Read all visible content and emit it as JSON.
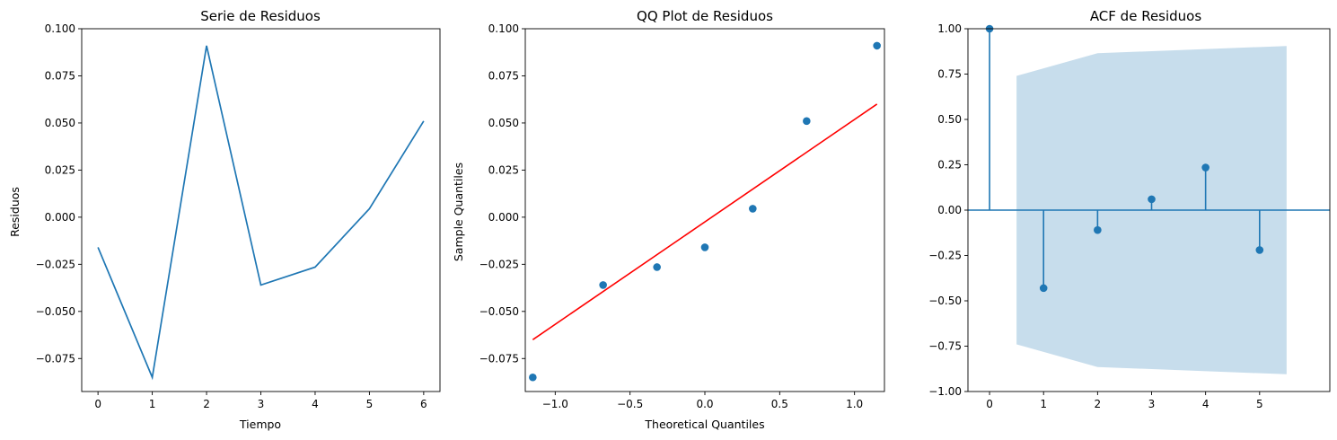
{
  "chart_data": [
    {
      "type": "line",
      "title": "Serie de Residuos",
      "xlabel": "Tiempo",
      "ylabel": "Residuos",
      "xlim": [
        -0.3,
        6.3
      ],
      "ylim": [
        -0.0925,
        0.1
      ],
      "x_ticks": [
        0,
        1,
        2,
        3,
        4,
        5,
        6
      ],
      "x_tick_labels": [
        "0",
        "1",
        "2",
        "3",
        "4",
        "5",
        "6"
      ],
      "y_ticks": [
        -0.075,
        -0.05,
        -0.025,
        0.0,
        0.025,
        0.05,
        0.075,
        0.1
      ],
      "y_tick_labels": [
        "−0.075",
        "−0.050",
        "−0.025",
        "0.000",
        "0.025",
        "0.050",
        "0.075",
        "0.100"
      ],
      "grid": false,
      "series": [
        {
          "x": [
            0,
            1,
            2,
            3,
            4,
            5,
            6
          ],
          "y": [
            -0.016,
            -0.085,
            0.091,
            -0.036,
            -0.0265,
            0.0045,
            0.051
          ],
          "color": "#1f77b4"
        }
      ]
    },
    {
      "type": "scatter",
      "title": "QQ Plot de Residuos",
      "xlabel": "Theoretical Quantiles",
      "ylabel": "Sample Quantiles",
      "xlim": [
        -1.2,
        1.2
      ],
      "ylim": [
        -0.0925,
        0.1
      ],
      "x_ticks": [
        -1.0,
        -0.5,
        0.0,
        0.5,
        1.0
      ],
      "x_tick_labels": [
        "−1.0",
        "−0.5",
        "0.0",
        "0.5",
        "1.0"
      ],
      "y_ticks": [
        -0.075,
        -0.05,
        -0.025,
        0.0,
        0.025,
        0.05,
        0.075,
        0.1
      ],
      "y_tick_labels": [
        "−0.075",
        "−0.050",
        "−0.025",
        "0.000",
        "0.025",
        "0.050",
        "0.075",
        "0.100"
      ],
      "grid": false,
      "points": {
        "x": [
          -1.15,
          -0.68,
          -0.32,
          0.0,
          0.32,
          0.68,
          1.15
        ],
        "y": [
          -0.085,
          -0.036,
          -0.0265,
          -0.016,
          0.0045,
          0.051,
          0.091
        ],
        "color": "#1f77b4"
      },
      "reference_line": {
        "x": [
          -1.15,
          1.15
        ],
        "y": [
          -0.065,
          0.06
        ],
        "color": "#ff0000"
      }
    },
    {
      "type": "stem",
      "title": "ACF de Residuos",
      "xlabel": "",
      "ylabel": "",
      "xlim": [
        -0.4,
        6.3
      ],
      "ylim": [
        -1.0,
        1.0
      ],
      "x_ticks": [
        0,
        1,
        2,
        3,
        4,
        5
      ],
      "x_tick_labels": [
        "0",
        "1",
        "2",
        "3",
        "4",
        "5"
      ],
      "y_ticks": [
        -1.0,
        -0.75,
        -0.5,
        -0.25,
        0.0,
        0.25,
        0.5,
        0.75,
        1.0
      ],
      "y_tick_labels": [
        "−1.00",
        "−0.75",
        "−0.50",
        "−0.25",
        "0.00",
        "0.25",
        "0.50",
        "0.75",
        "1.00"
      ],
      "grid": false,
      "lags": [
        0,
        1,
        2,
        3,
        4,
        5
      ],
      "acf": [
        1.0,
        -0.43,
        -0.11,
        0.06,
        0.235,
        -0.22
      ],
      "color": "#1f77b4",
      "confidence_band": {
        "x": [
          0.5,
          2,
          5.5
        ],
        "upper": [
          0.74,
          0.865,
          0.905
        ],
        "lower": [
          -0.74,
          -0.865,
          -0.905
        ],
        "color": "#1f77b4",
        "opacity": 0.25
      }
    }
  ]
}
